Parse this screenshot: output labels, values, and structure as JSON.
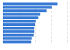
{
  "chart_data": {
    "type": "bar",
    "orientation": "horizontal",
    "categories": [
      null,
      null,
      null,
      null,
      null,
      null,
      null,
      null,
      null,
      null,
      null,
      null
    ],
    "values": [
      85,
      76,
      68,
      58,
      55,
      51,
      50,
      49,
      49,
      48,
      45,
      44
    ],
    "color": "#3a7bd5",
    "xlim": [
      0,
      100
    ],
    "xticks": [
      0,
      25,
      50,
      75,
      100
    ],
    "grid": true,
    "tick_labels": false
  }
}
